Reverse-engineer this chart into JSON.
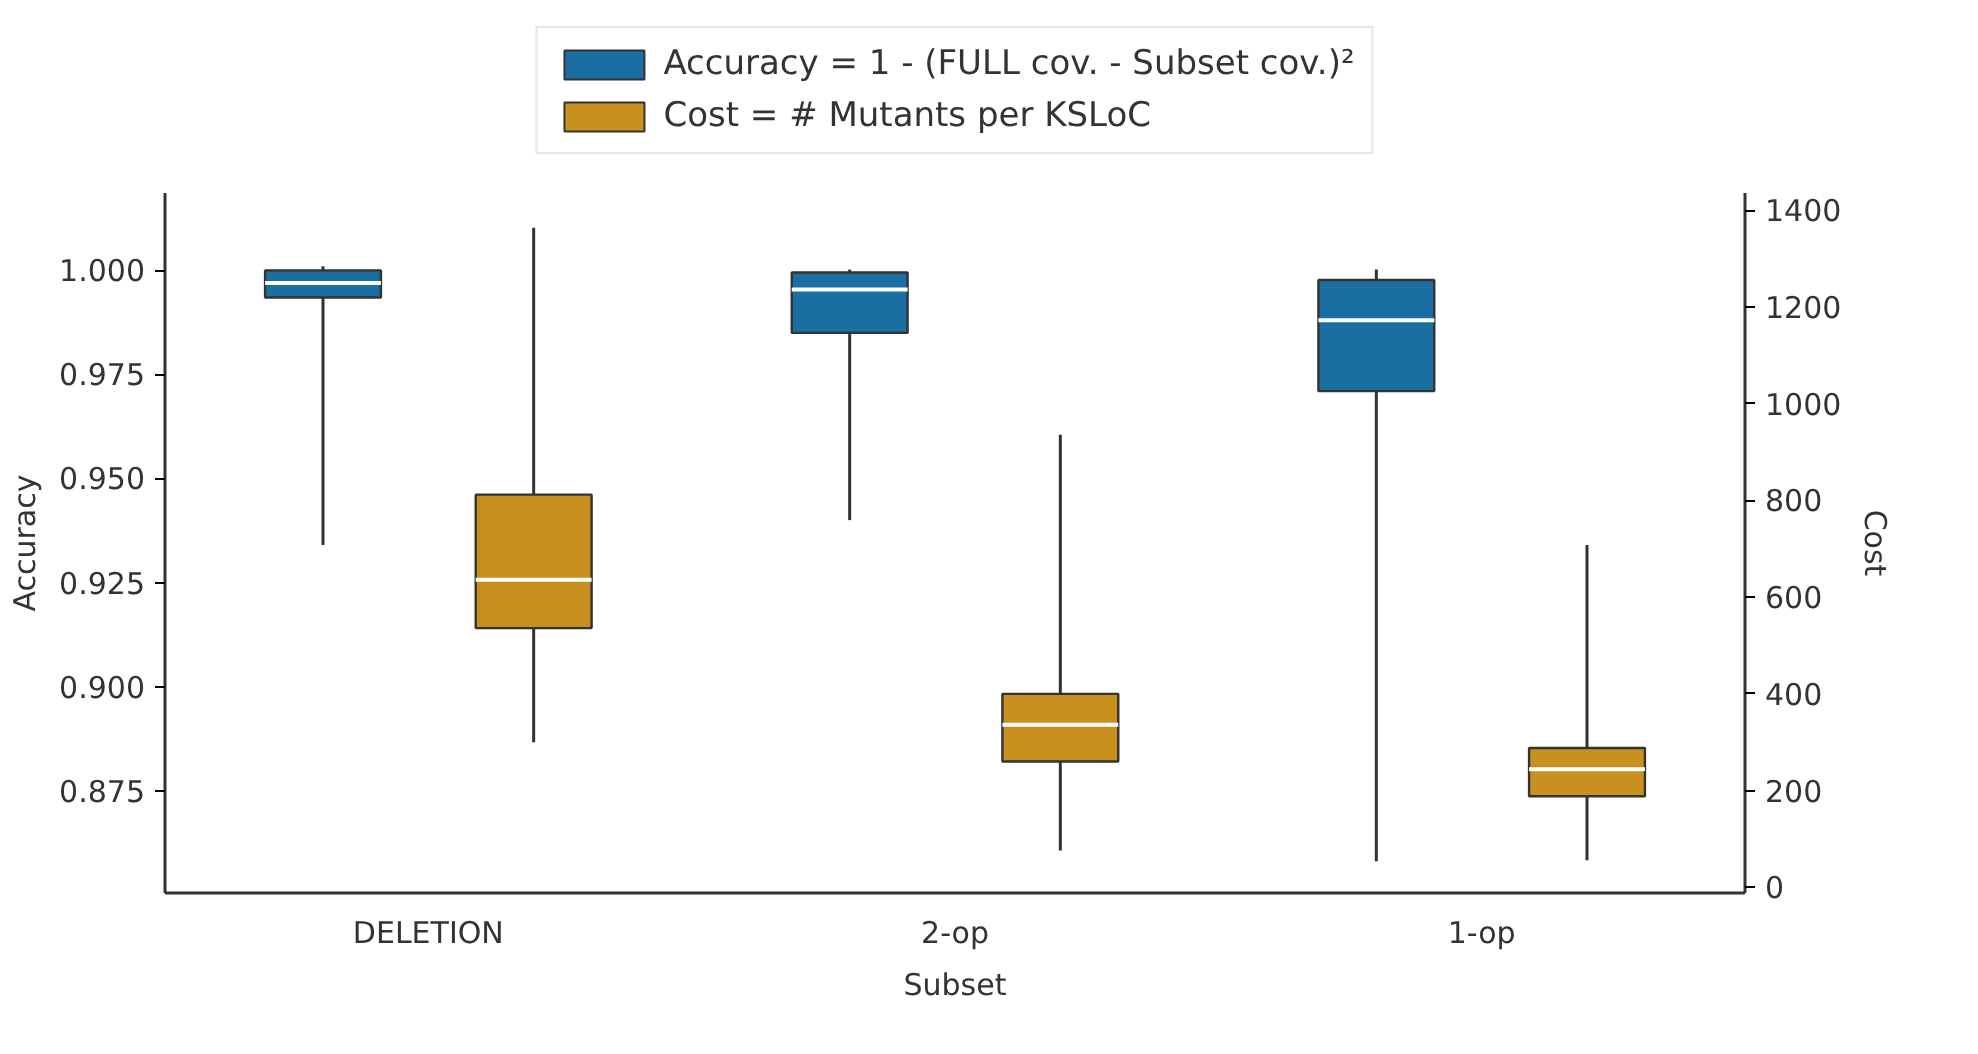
{
  "chart_data": {
    "type": "box",
    "xlabel": "Subset",
    "ylabel": "Accuracy",
    "y2label": "Cost",
    "categories": [
      "DELETION",
      "2-op",
      "1-op"
    ],
    "series": [
      {
        "name": "Accuracy = 1 - (FULL cov. - Subset cov.)²",
        "color": "#1a6ea1",
        "boxes": [
          {
            "low": 0.934,
            "q1": 0.9935,
            "median": 0.997,
            "q3": 1.0,
            "high": 1.001
          },
          {
            "low": 0.94,
            "q1": 0.985,
            "median": 0.9954,
            "q3": 0.9995,
            "high": 1.0002
          },
          {
            "low": 0.858,
            "q1": 0.971,
            "median": 0.988,
            "q3": 0.9977,
            "high": 1.0002
          }
        ]
      },
      {
        "name": "Cost = # Mutants per KSLoC",
        "color": "#c8911f",
        "axis": "y2",
        "boxes": [
          {
            "low": 300,
            "q1": 536,
            "median": 636,
            "q3": 812,
            "high": 1364
          },
          {
            "low": 76,
            "q1": 260,
            "median": 336,
            "q3": 400,
            "high": 936
          },
          {
            "low": 56,
            "q1": 188,
            "median": 244,
            "q3": 288,
            "high": 708
          }
        ]
      }
    ],
    "ylim": [
      0.8504,
      1.0186
    ],
    "yticks": [
      {
        "value": 0.875,
        "label": "0.875"
      },
      {
        "value": 0.9,
        "label": "0.900"
      },
      {
        "value": 0.925,
        "label": "0.925"
      },
      {
        "value": 0.95,
        "label": "0.950"
      },
      {
        "value": 0.975,
        "label": "0.975"
      },
      {
        "value": 1.0,
        "label": "1.000"
      }
    ],
    "y2lim": [
      -12,
      1436
    ],
    "y2ticks": [
      0,
      200,
      400,
      600,
      800,
      1000,
      1200,
      1400
    ],
    "grid": false,
    "legend": "top"
  }
}
